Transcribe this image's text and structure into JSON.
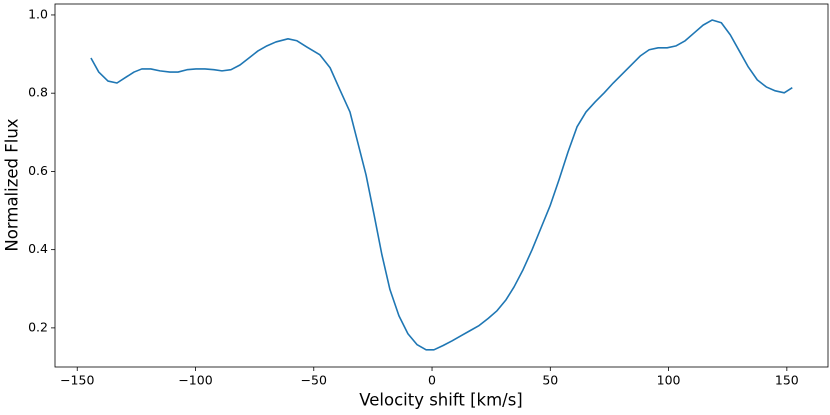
{
  "chart_data": {
    "type": "line",
    "x_label": "Velocity shift [km/s]",
    "y_label": "Normalized Flux",
    "x": [
      -144.2,
      -140.9,
      -137,
      -133.2,
      -129.9,
      -126,
      -122.7,
      -118.9,
      -115,
      -110.8,
      -107.4,
      -103.6,
      -99.8,
      -96,
      -92.2,
      -88.8,
      -85,
      -81.2,
      -77.4,
      -73.6,
      -69.8,
      -66,
      -60.9,
      -57.1,
      -52.9,
      -47.4,
      -43.1,
      -38.9,
      -34.7,
      -31.7,
      -27.9,
      -24.5,
      -21.2,
      -17.8,
      -14,
      -10.2,
      -6.3,
      -2.5,
      0.8,
      4.7,
      8.5,
      12.3,
      16.1,
      19.9,
      23.7,
      27.5,
      31.3,
      34.7,
      38.5,
      42.3,
      46.1,
      49.9,
      53.7,
      57.5,
      61.3,
      65.1,
      69,
      72.8,
      76.6,
      80.4,
      84.2,
      88,
      91.8,
      95.6,
      99.4,
      103.2,
      107,
      110.8,
      114.6,
      118.4,
      122.3,
      126.1,
      129.9,
      133.7,
      137.5,
      141.3,
      145.1,
      148.9,
      152.3
    ],
    "series": [
      {
        "name": "Normalized Flux",
        "color": "#1f77b4",
        "values": [
          0.89,
          0.854,
          0.831,
          0.826,
          0.839,
          0.854,
          0.862,
          0.862,
          0.857,
          0.854,
          0.854,
          0.86,
          0.862,
          0.862,
          0.86,
          0.857,
          0.86,
          0.872,
          0.89,
          0.908,
          0.921,
          0.931,
          0.939,
          0.934,
          0.918,
          0.898,
          0.865,
          0.808,
          0.752,
          0.681,
          0.591,
          0.489,
          0.387,
          0.298,
          0.231,
          0.185,
          0.157,
          0.144,
          0.144,
          0.155,
          0.167,
          0.18,
          0.193,
          0.206,
          0.224,
          0.244,
          0.272,
          0.305,
          0.349,
          0.4,
          0.456,
          0.512,
          0.579,
          0.65,
          0.714,
          0.752,
          0.778,
          0.801,
          0.826,
          0.849,
          0.872,
          0.895,
          0.911,
          0.916,
          0.916,
          0.921,
          0.934,
          0.954,
          0.974,
          0.987,
          0.98,
          0.949,
          0.908,
          0.867,
          0.834,
          0.816,
          0.806,
          0.801,
          0.814
        ]
      }
    ],
    "xlim": [
      -159.4,
      167.4
    ],
    "ylim": [
      0.1,
      1.028
    ],
    "xticks": [
      {
        "value": -150,
        "label": "−150"
      },
      {
        "value": -100,
        "label": "−100"
      },
      {
        "value": -50,
        "label": "−50"
      },
      0,
      50,
      100,
      150
    ],
    "yticks": [
      0.2,
      0.4,
      0.6,
      0.8,
      {
        "value": 1.0,
        "label": "1.0"
      }
    ],
    "grid": false
  }
}
